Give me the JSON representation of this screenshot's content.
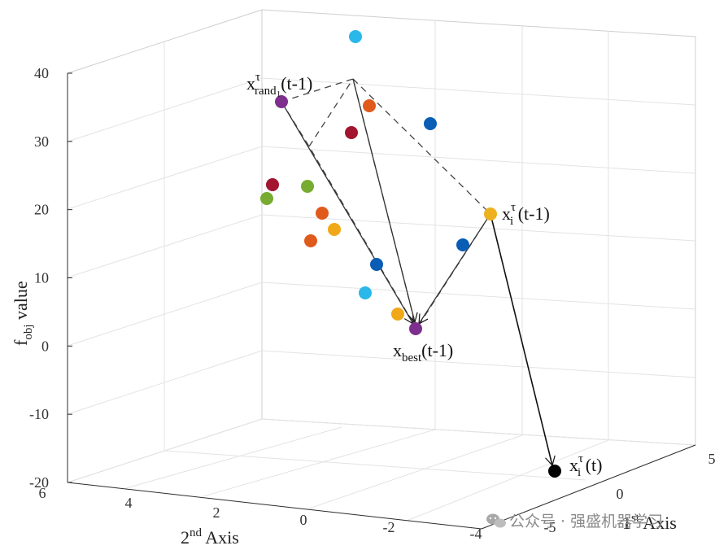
{
  "chart_data": {
    "type": "scatter",
    "ylabel_base": "f",
    "ylabel_sub": "obj",
    "ylabel_rest": " value",
    "xlabel_base": "1",
    "xlabel_sup": "st",
    "xlabel_rest": " Axis",
    "y2label_base": "2",
    "y2label_sup": "nd",
    "y2label_rest": " Axis",
    "zlim": [
      -20,
      40
    ],
    "z_ticks": [
      "40",
      "30",
      "20",
      "10",
      "0",
      "-10",
      "-20"
    ],
    "second_axis_ticks": [
      "6",
      "4",
      "2",
      "0",
      "-2",
      "-4"
    ],
    "first_axis_ticks": [
      "-5",
      "0",
      "5"
    ],
    "grid": true,
    "points": [
      {
        "color": "#2ab7ea",
        "group": "light-blue"
      },
      {
        "color": "#0a5db5",
        "group": "blue"
      },
      {
        "color": "#e05a1b",
        "group": "orange"
      },
      {
        "color": "#a2142f",
        "group": "crimson"
      },
      {
        "color": "#7e2f8e",
        "group": "purple",
        "role": "x_rand1"
      },
      {
        "color": "#a2142f",
        "group": "crimson"
      },
      {
        "color": "#77ac30",
        "group": "green"
      },
      {
        "color": "#77ac30",
        "group": "green"
      },
      {
        "color": "#e05a1b",
        "group": "orange"
      },
      {
        "color": "#f0a818",
        "group": "yellow"
      },
      {
        "color": "#e05a1b",
        "group": "orange"
      },
      {
        "color": "#edb120",
        "group": "yellow",
        "role": "x_i"
      },
      {
        "color": "#0a5db5",
        "group": "blue"
      },
      {
        "color": "#0a5db5",
        "group": "blue"
      },
      {
        "color": "#2ab7ea",
        "group": "light-blue"
      },
      {
        "color": "#f0a818",
        "group": "yellow"
      },
      {
        "color": "#7e2f8e",
        "group": "purple",
        "role": "x_best"
      },
      {
        "color": "#000000",
        "group": "black",
        "role": "x_i_new"
      }
    ],
    "annotations": {
      "rand1": {
        "base": "x",
        "sup": "τ",
        "sub": "rand",
        "subsub": "1",
        "rest": "(t-1)"
      },
      "xi_prev": {
        "base": "x",
        "sup": "τ",
        "sub": "i",
        "rest": " (t-1)"
      },
      "best": {
        "base": "x",
        "sub": "best",
        "rest": "(t-1)"
      },
      "xi_new": {
        "base": "x",
        "sup": "τ",
        "sub": "i",
        "rest": " (t)"
      }
    }
  },
  "watermark": "公众号 · 强盛机器学习"
}
